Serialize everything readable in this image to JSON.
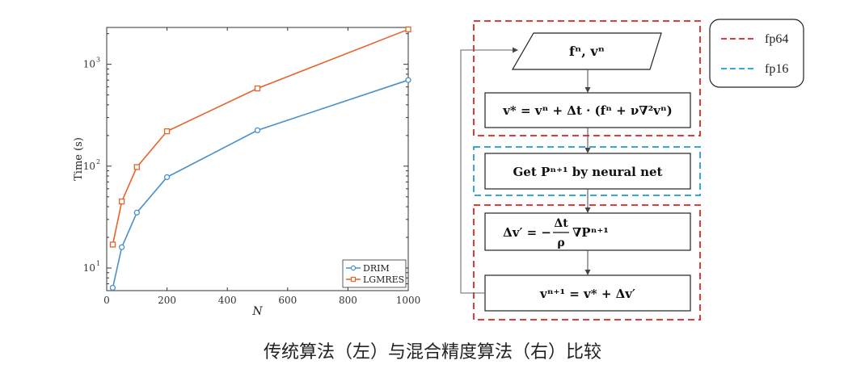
{
  "chart_data": {
    "type": "line",
    "xlabel": "N",
    "ylabel": "Time (s)",
    "xlim": [
      0,
      1000
    ],
    "ylim_log": [
      6,
      2300
    ],
    "log_y": true,
    "x_ticks": [
      "0",
      "200",
      "400",
      "600",
      "800",
      "1000"
    ],
    "y_ticks": [
      {
        "base": "10",
        "exp": "1"
      },
      {
        "base": "10",
        "exp": "2"
      },
      {
        "base": "10",
        "exp": "3"
      }
    ],
    "grid": false,
    "legend_position": "bottom-right",
    "series": [
      {
        "name": "DRIM",
        "color": "#4a90c8",
        "marker": "circle",
        "x": [
          20,
          50,
          100,
          200,
          500,
          1000
        ],
        "y": [
          6.4,
          16,
          35,
          78,
          225,
          700
        ]
      },
      {
        "name": "LGMRES",
        "color": "#e8632b",
        "marker": "square",
        "x": [
          20,
          50,
          100,
          200,
          500,
          1000
        ],
        "y": [
          17,
          45,
          98,
          220,
          580,
          2200
        ]
      }
    ]
  },
  "flowchart": {
    "legend": [
      {
        "label": "fp64",
        "color": "#e23b3b"
      },
      {
        "label": "fp16",
        "color": "#36a9d6"
      }
    ],
    "steps": {
      "input": "fⁿ, vⁿ",
      "advect": "v* = vⁿ + Δt · (fⁿ + ν∇²vⁿ)",
      "neural": "Get Pⁿ⁺¹ by neural net",
      "grad_lhs": "Δv′ = −",
      "grad_num": "Δt",
      "grad_den": "ρ",
      "grad_rhs": "∇Pⁿ⁺¹",
      "update": "vⁿ⁺¹ = v* + Δv′"
    }
  },
  "caption": "传统算法（左）与混合精度算法（右）比较"
}
